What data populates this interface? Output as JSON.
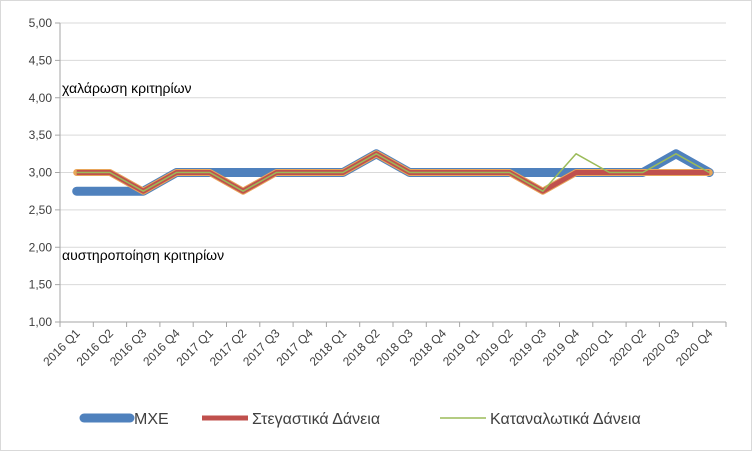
{
  "chart_data": {
    "type": "line",
    "categories": [
      "2016 Q1",
      "2016 Q2",
      "2016 Q3",
      "2016 Q4",
      "2017 Q1",
      "2017 Q2",
      "2017 Q3",
      "2017 Q4",
      "2018 Q1",
      "2018 Q2",
      "2018 Q3",
      "2018 Q4",
      "2019 Q1",
      "2019 Q2",
      "2019 Q3",
      "2019 Q4",
      "2020 Q1",
      "2020 Q2",
      "2020 Q3",
      "2020 Q4"
    ],
    "ylim": [
      1.0,
      5.0
    ],
    "yticks": [
      "1,00",
      "1,50",
      "2,00",
      "2,50",
      "3,00",
      "3,50",
      "4,00",
      "4,50",
      "5,00"
    ],
    "series": [
      {
        "name": "ΜΧΕ",
        "color": "#4f81bd",
        "values": [
          2.75,
          2.75,
          2.75,
          3.0,
          3.0,
          3.0,
          3.0,
          3.0,
          3.0,
          3.25,
          3.0,
          3.0,
          3.0,
          3.0,
          3.0,
          3.0,
          3.0,
          3.0,
          3.25,
          3.0
        ]
      },
      {
        "name": "Στεγαστικά Δάνεια",
        "color": "#c0504d",
        "values": [
          3.0,
          3.0,
          2.75,
          3.0,
          3.0,
          2.75,
          3.0,
          3.0,
          3.0,
          3.25,
          3.0,
          3.0,
          3.0,
          3.0,
          2.75,
          3.0,
          3.0,
          3.0,
          3.0,
          3.0
        ]
      },
      {
        "name": "Καταναλωτικά Δάνεια",
        "color": "#9bbb59",
        "values": [
          3.0,
          3.0,
          2.75,
          3.0,
          3.0,
          2.75,
          3.0,
          3.0,
          3.0,
          3.25,
          3.0,
          3.0,
          3.0,
          3.0,
          2.75,
          3.25,
          3.0,
          3.0,
          3.25,
          3.0
        ]
      }
    ],
    "annotations": [
      {
        "text": "χαλάρωση κριτηρίων",
        "y": 4.12
      },
      {
        "text": "αυστηροποίηση κριτηρίων",
        "y": 1.88
      }
    ],
    "grid": true,
    "legend": "bottom"
  }
}
